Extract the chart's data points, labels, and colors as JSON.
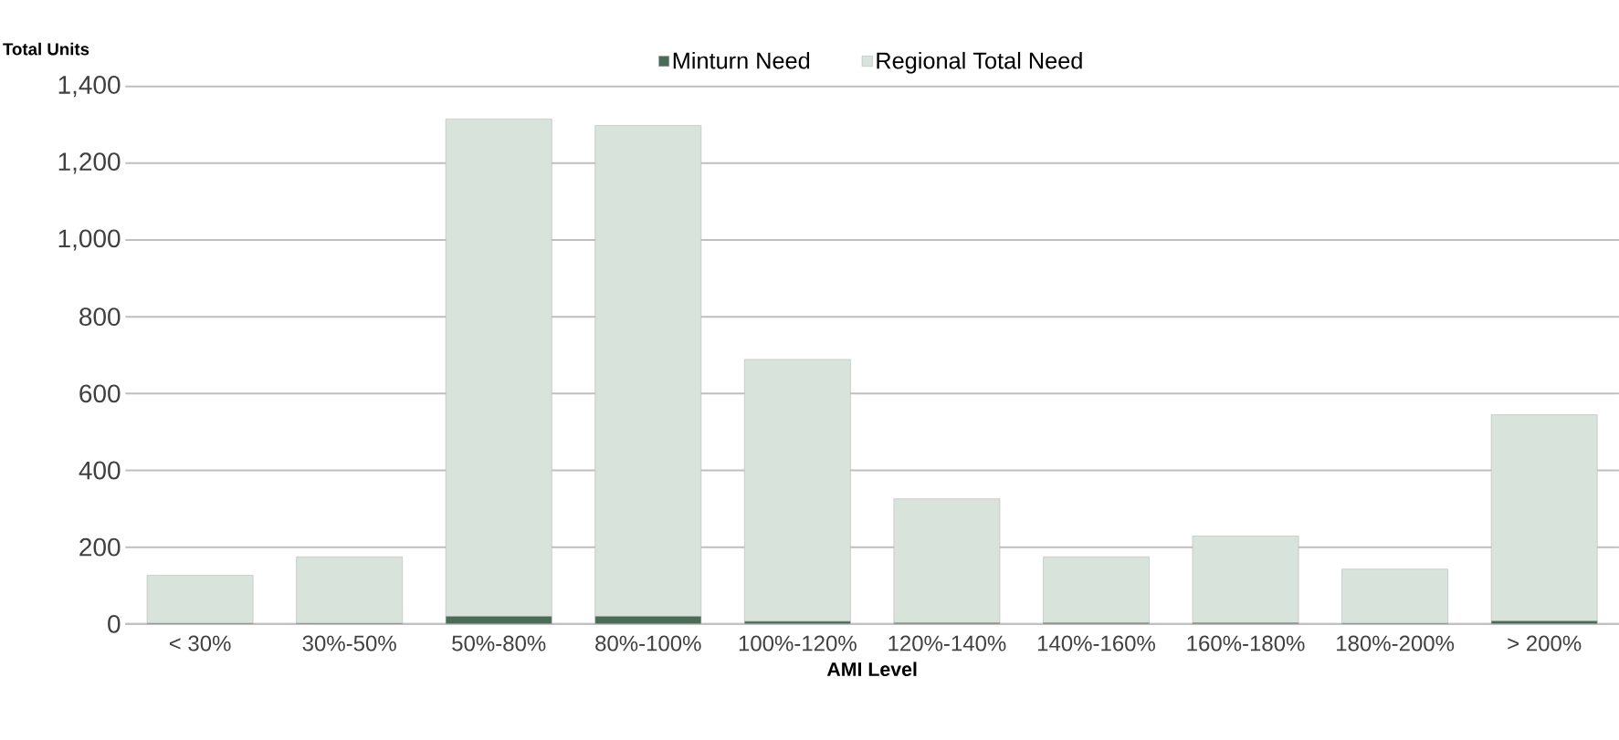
{
  "chart_data": {
    "type": "bar",
    "stacked": true,
    "xlabel": "AMI Level",
    "ylabel": "Total Units",
    "categories": [
      "< 30%",
      "30%-50%",
      "50%-80%",
      "80%-100%",
      "100%-120%",
      "120%-140%",
      "140%-160%",
      "160%-180%",
      "180%-200%",
      "> 200%"
    ],
    "series": [
      {
        "name": "Minturn Need",
        "color": "#4a6b55",
        "values": [
          2,
          2,
          20,
          20,
          7,
          3,
          3,
          3,
          2,
          8
        ]
      },
      {
        "name": "Regional Total Need",
        "color": "#d8e3dc",
        "values": [
          125,
          173,
          1295,
          1278,
          682,
          323,
          172,
          226,
          141,
          537
        ]
      }
    ],
    "ylim": [
      0,
      1400
    ],
    "yticks": [
      {
        "value": 0,
        "label": "0"
      },
      {
        "value": 200,
        "label": "200"
      },
      {
        "value": 400,
        "label": "400"
      },
      {
        "value": 600,
        "label": "600"
      },
      {
        "value": 800,
        "label": "800"
      },
      {
        "value": 1000,
        "label": "1,000"
      },
      {
        "value": 1200,
        "label": "1,200"
      },
      {
        "value": 1400,
        "label": "1,400"
      }
    ],
    "grid": "y",
    "legend": "top"
  }
}
